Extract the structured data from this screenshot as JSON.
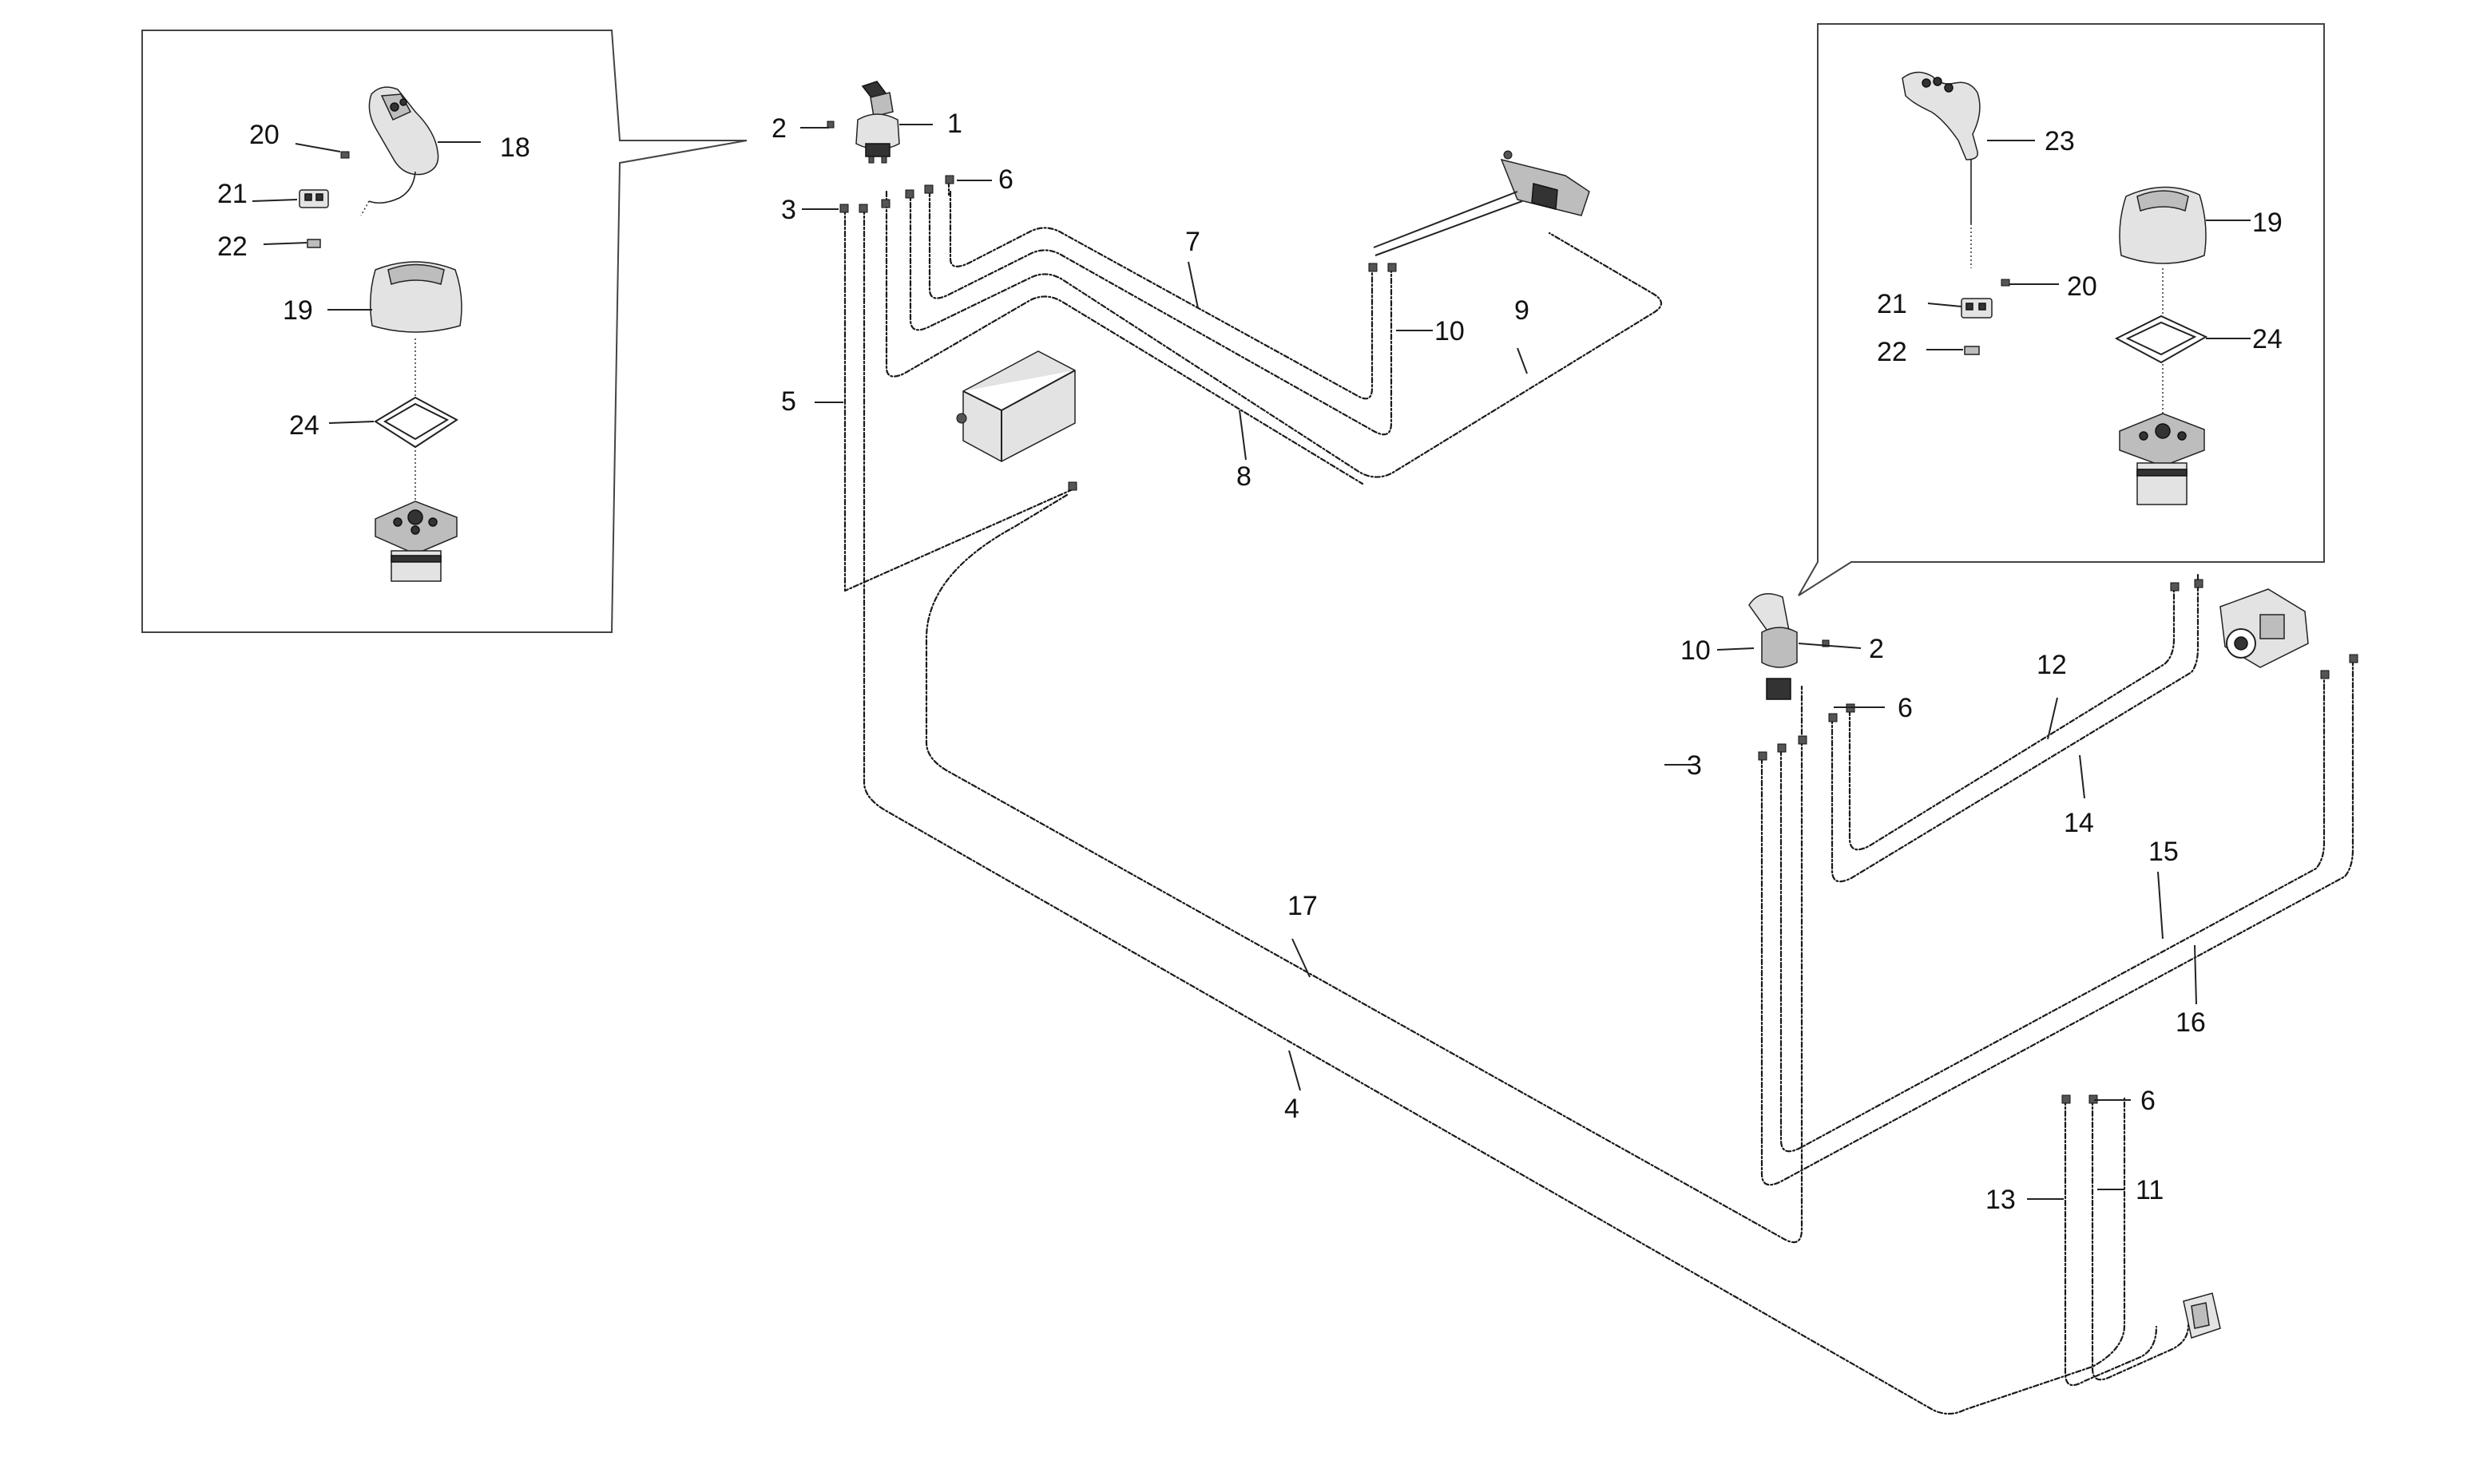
{
  "callouts": {
    "c1": "1",
    "c2": "2",
    "c3": "3",
    "c4": "4",
    "c5": "5",
    "c6": "6",
    "c7": "7",
    "c8": "8",
    "c9": "9",
    "c10": "10",
    "c11": "11",
    "c12": "12",
    "c13": "13",
    "c14": "14",
    "c15": "15",
    "c16": "16",
    "c17": "17",
    "c18": "18",
    "c19": "19",
    "c20": "20",
    "c21": "21",
    "c22": "22",
    "c23": "23",
    "c24": "24"
  },
  "colors": {
    "background": "#ffffff",
    "line": "#1a1a1a"
  }
}
